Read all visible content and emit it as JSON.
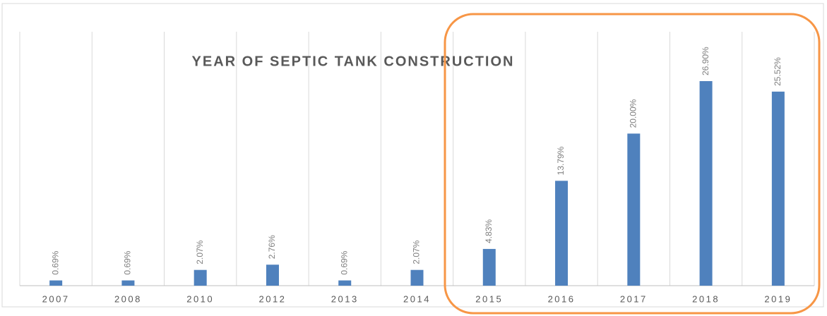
{
  "chart_data": {
    "type": "bar",
    "title": "YEAR OF SEPTIC TANK CONSTRUCTION",
    "categories": [
      "2007",
      "2008",
      "2010",
      "2012",
      "2013",
      "2014",
      "2015",
      "2016",
      "2017",
      "2018",
      "2019"
    ],
    "values": [
      0.69,
      0.69,
      2.07,
      2.76,
      0.69,
      2.07,
      4.83,
      13.79,
      20.0,
      26.9,
      25.52
    ],
    "value_labels": [
      "0.69%",
      "0.69%",
      "2.07%",
      "2.76%",
      "0.69%",
      "2.07%",
      "4.83%",
      "13.79%",
      "20.00%",
      "26.90%",
      "25.52%"
    ],
    "color": "#4f81bd"
  }
}
